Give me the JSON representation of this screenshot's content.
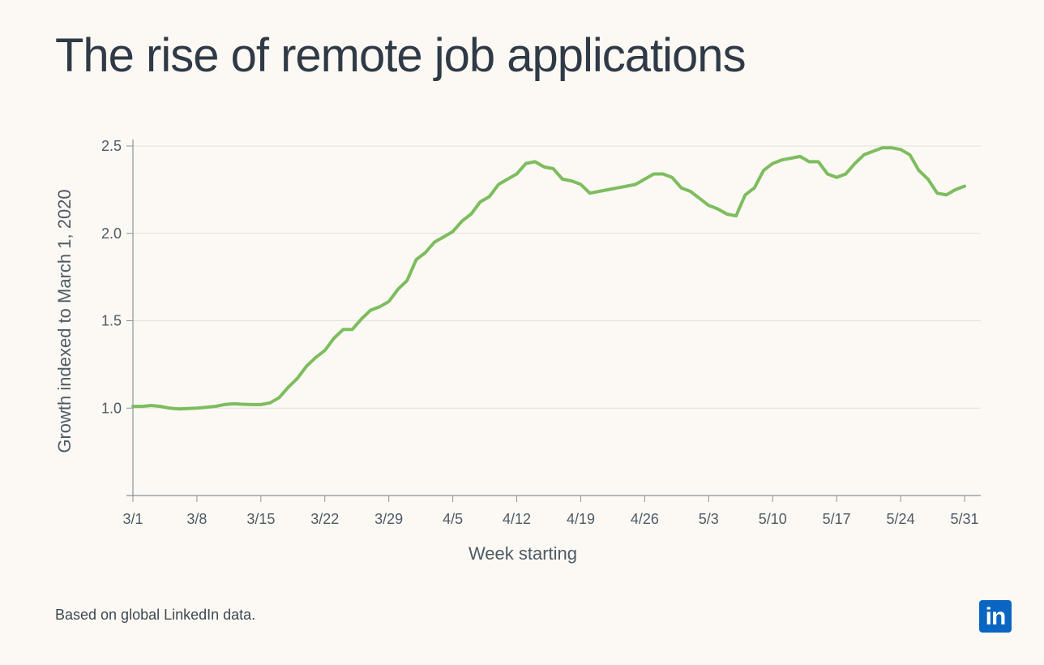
{
  "title": "The rise of remote job applications",
  "footnote": "Based on global LinkedIn data.",
  "logo": {
    "text": "in",
    "color": "#0a66c2",
    "icon": "linkedin-logo-icon"
  },
  "chart_data": {
    "type": "line",
    "xlabel": "Week starting",
    "ylabel": "Growth indexed to March 1, 2020",
    "x_tick_labels": [
      "3/1",
      "3/8",
      "3/15",
      "3/22",
      "3/29",
      "4/5",
      "4/12",
      "4/19",
      "4/26",
      "5/3",
      "5/10",
      "5/17",
      "5/24",
      "5/31"
    ],
    "y_ticks": [
      1.0,
      1.5,
      2.0,
      2.5
    ],
    "y_tick_labels": [
      "1.0",
      "1.5",
      "2.0",
      "2.5"
    ],
    "ylim": [
      0.5,
      2.5
    ],
    "grid": true,
    "line_color": "#7dbd5e",
    "series": [
      {
        "x": [
          "3/1",
          "3/2",
          "3/3",
          "3/4",
          "3/5",
          "3/6",
          "3/7",
          "3/8",
          "3/9",
          "3/10",
          "3/11",
          "3/12",
          "3/13",
          "3/14",
          "3/15",
          "3/16",
          "3/17",
          "3/18",
          "3/19",
          "3/20",
          "3/21",
          "3/22",
          "3/23",
          "3/24",
          "3/25",
          "3/26",
          "3/27",
          "3/28",
          "3/29",
          "3/30",
          "3/31",
          "4/1",
          "4/2",
          "4/3",
          "4/4",
          "4/5",
          "4/6",
          "4/7",
          "4/8",
          "4/9",
          "4/10",
          "4/11",
          "4/12",
          "4/13",
          "4/14",
          "4/15",
          "4/16",
          "4/17",
          "4/18",
          "4/19",
          "4/20",
          "4/21",
          "4/22",
          "4/23",
          "4/24",
          "4/25",
          "4/26",
          "4/27",
          "4/28",
          "4/29",
          "4/30",
          "5/1",
          "5/2",
          "5/3",
          "5/4",
          "5/5",
          "5/6",
          "5/7",
          "5/8",
          "5/9",
          "5/10",
          "5/11",
          "5/12",
          "5/13",
          "5/14",
          "5/15",
          "5/16",
          "5/17",
          "5/18",
          "5/19",
          "5/20",
          "5/21",
          "5/22",
          "5/23",
          "5/24",
          "5/25",
          "5/26",
          "5/27",
          "5/28",
          "5/29",
          "5/30",
          "5/31"
        ],
        "values": [
          1.01,
          1.01,
          1.015,
          1.01,
          1.0,
          0.995,
          0.998,
          1.0,
          1.005,
          1.01,
          1.02,
          1.025,
          1.022,
          1.02,
          1.02,
          1.03,
          1.06,
          1.12,
          1.17,
          1.24,
          1.29,
          1.33,
          1.4,
          1.45,
          1.45,
          1.51,
          1.56,
          1.58,
          1.61,
          1.68,
          1.73,
          1.85,
          1.89,
          1.95,
          1.98,
          2.01,
          2.07,
          2.11,
          2.18,
          2.21,
          2.28,
          2.31,
          2.34,
          2.4,
          2.41,
          2.38,
          2.37,
          2.31,
          2.3,
          2.28,
          2.23,
          2.24,
          2.25,
          2.26,
          2.27,
          2.28,
          2.31,
          2.34,
          2.34,
          2.32,
          2.26,
          2.24,
          2.2,
          2.16,
          2.14,
          2.11,
          2.1,
          2.22,
          2.26,
          2.36,
          2.4,
          2.42,
          2.43,
          2.44,
          2.41,
          2.41,
          2.34,
          2.32,
          2.34,
          2.4,
          2.45,
          2.47,
          2.49,
          2.49,
          2.48,
          2.45,
          2.36,
          2.31,
          2.23,
          2.22,
          2.25,
          2.27
        ]
      }
    ]
  }
}
